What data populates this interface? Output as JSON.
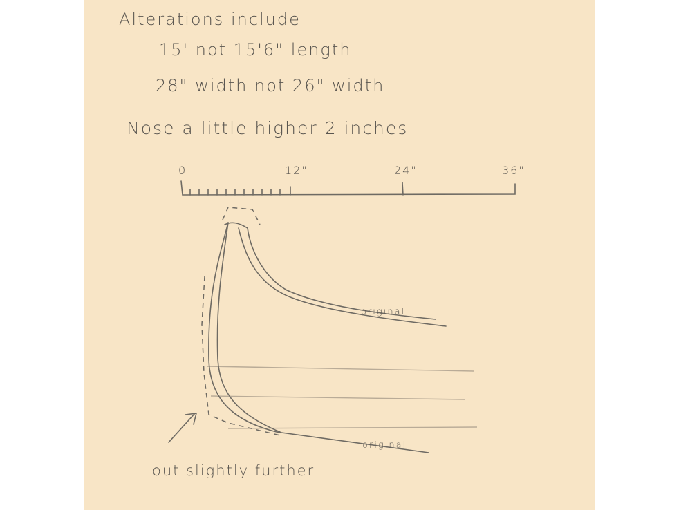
{
  "notes": {
    "title": "Alterations include",
    "lines": [
      "15' not 15'6\" length",
      "28\" width not 26\" width"
    ],
    "nose": "Nose a little higher 2 inches"
  },
  "ruler": {
    "labels": [
      "0",
      "12\"",
      "24\"",
      "36\""
    ]
  },
  "annotations": {
    "upper_original": "original",
    "lower_original": "original",
    "arrow_note": "out slightly further"
  }
}
